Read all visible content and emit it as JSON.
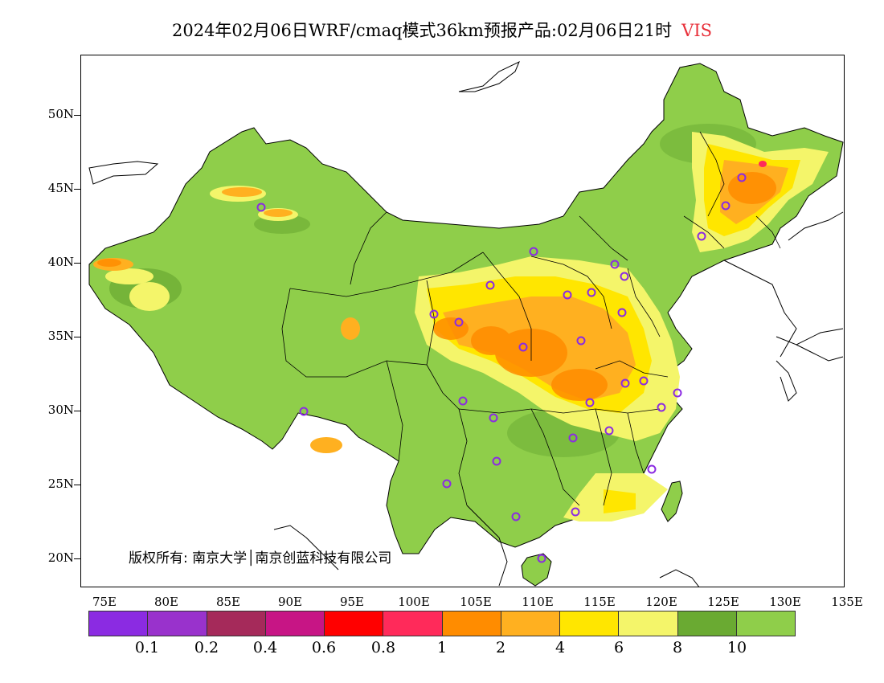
{
  "title": {
    "text": "2024年02月06日WRF/cmaq模式36km预报产品:02月06日21时",
    "variable": "VIS"
  },
  "map": {
    "lat_labels": [
      "50N",
      "45N",
      "40N",
      "35N",
      "30N",
      "25N",
      "20N"
    ],
    "lon_labels": [
      "75E",
      "80E",
      "85E",
      "90E",
      "95E",
      "100E",
      "105E",
      "110E",
      "115E",
      "120E",
      "125E",
      "130E",
      "135E"
    ],
    "copyright": "版权所有: 南京大学│南京创蓝科技有限公司"
  },
  "legend": {
    "colors": [
      "#8b2be2",
      "#9932cc",
      "#a52a5a",
      "#c71585",
      "#ff0000",
      "#ff2a5a",
      "#ff8c00",
      "#ffb020",
      "#ffe600",
      "#f4f56a",
      "#6aaa32",
      "#8fce4a"
    ],
    "labels": [
      "0.1",
      "0.2",
      "0.4",
      "0.6",
      "0.8",
      "1",
      "2",
      "4",
      "6",
      "8",
      "10"
    ]
  },
  "colors": {
    "high_vis": "#8fce4a",
    "good_vis": "#6aaa32",
    "light_yellow": "#f4f56a",
    "yellow": "#ffe600",
    "orange_light": "#ffb020",
    "orange": "#ff8c00",
    "red": "#ff2a5a",
    "station_circle": "#8b2be2",
    "title_variable": "#e8303a"
  }
}
